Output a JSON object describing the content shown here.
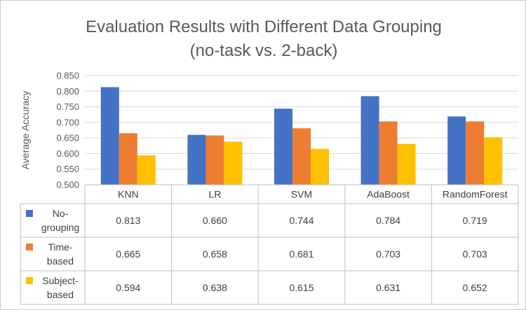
{
  "chart_data": {
    "type": "bar",
    "title_lines": [
      "Evaluation Results with Different Data Grouping",
      "(no-task vs. 2-back)"
    ],
    "ylabel": "Average Accuracy",
    "xlabel": "",
    "ylim": [
      0.5,
      0.85
    ],
    "ytick_step": 0.05,
    "yticks": [
      "0.500",
      "0.550",
      "0.600",
      "0.650",
      "0.700",
      "0.750",
      "0.800",
      "0.850"
    ],
    "grid": true,
    "legend_placement": "data-table-rows",
    "categories": [
      "KNN",
      "LR",
      "SVM",
      "AdaBoost",
      "RandomForest"
    ],
    "series": [
      {
        "name": "No-grouping",
        "legend_lines": [
          "No-",
          "grouping"
        ],
        "color": "#4472c4",
        "values": [
          0.813,
          0.66,
          0.744,
          0.784,
          0.719
        ],
        "labels": [
          "0.813",
          "0.660",
          "0.744",
          "0.784",
          "0.719"
        ]
      },
      {
        "name": "Time-based",
        "legend_lines": [
          "Time-",
          "based"
        ],
        "color": "#ed7d31",
        "values": [
          0.665,
          0.658,
          0.681,
          0.703,
          0.703
        ],
        "labels": [
          "0.665",
          "0.658",
          "0.681",
          "0.703",
          "0.703"
        ]
      },
      {
        "name": "Subject-based",
        "legend_lines": [
          "Subject-",
          "based"
        ],
        "color": "#ffc000",
        "values": [
          0.594,
          0.638,
          0.615,
          0.631,
          0.652
        ],
        "labels": [
          "0.594",
          "0.638",
          "0.615",
          "0.631",
          "0.652"
        ]
      }
    ]
  }
}
